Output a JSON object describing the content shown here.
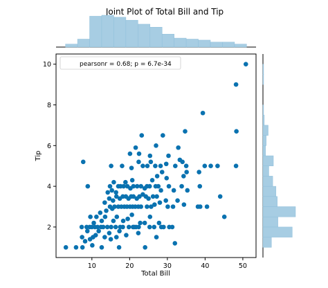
{
  "figure": {
    "title": "Joint Plot of Total Bill and Tip"
  },
  "colors": {
    "points": "#0a72b0",
    "hist_fill": "#a7cde3",
    "hist_edge": "#8fbfdb",
    "axis": "#000000"
  },
  "chart_data": {
    "type": "scatter",
    "title": "Joint Plot of Total Bill and Tip",
    "xlabel": "Total Bill",
    "ylabel": "Tip",
    "xlim": [
      0.5,
      53.5
    ],
    "ylim": [
      0.5,
      10.5
    ],
    "xticks": [
      10,
      20,
      30,
      40,
      50
    ],
    "yticks": [
      2,
      4,
      6,
      8,
      10
    ],
    "grid": false,
    "annotation": "pearsonr = 0.68; p = 6.7e-34",
    "annotation_placement": "top-left",
    "points": [
      [
        3.1,
        1.0
      ],
      [
        5.8,
        1.0
      ],
      [
        7.5,
        1.0
      ],
      [
        10.1,
        1.1
      ],
      [
        12.6,
        1.0
      ],
      [
        17.2,
        1.0
      ],
      [
        32.0,
        1.2
      ],
      [
        7.4,
        1.5
      ],
      [
        8.2,
        1.3
      ],
      [
        9.5,
        1.4
      ],
      [
        10.3,
        1.5
      ],
      [
        11.0,
        1.6
      ],
      [
        13.4,
        1.5
      ],
      [
        15.0,
        1.4
      ],
      [
        16.5,
        1.5
      ],
      [
        19.1,
        1.6
      ],
      [
        22.3,
        1.7
      ],
      [
        27.1,
        1.5
      ],
      [
        24.1,
        1.0
      ],
      [
        7.3,
        2.0
      ],
      [
        8.6,
        2.0
      ],
      [
        9.4,
        2.0
      ],
      [
        10.0,
        2.0
      ],
      [
        10.8,
        2.0
      ],
      [
        11.5,
        2.0
      ],
      [
        12.4,
        2.0
      ],
      [
        13.0,
        2.0
      ],
      [
        14.1,
        2.0
      ],
      [
        15.1,
        2.0
      ],
      [
        16.3,
        2.0
      ],
      [
        17.5,
        2.0
      ],
      [
        18.2,
        2.0
      ],
      [
        19.8,
        2.0
      ],
      [
        20.9,
        2.0
      ],
      [
        21.7,
        2.0
      ],
      [
        22.4,
        2.0
      ],
      [
        25.3,
        2.0
      ],
      [
        29.0,
        2.0
      ],
      [
        30.5,
        2.0
      ],
      [
        31.3,
        2.0
      ],
      [
        8.8,
        1.8
      ],
      [
        10.5,
        2.2
      ],
      [
        11.8,
        1.8
      ],
      [
        12.6,
        2.3
      ],
      [
        13.5,
        2.5
      ],
      [
        14.6,
        1.7
      ],
      [
        15.7,
        2.3
      ],
      [
        16.6,
        2.5
      ],
      [
        17.3,
        1.8
      ],
      [
        18.3,
        2.3
      ],
      [
        19.5,
        2.4
      ],
      [
        20.6,
        2.6
      ],
      [
        21.2,
        2.0
      ],
      [
        22.8,
        2.2
      ],
      [
        24.0,
        2.2
      ],
      [
        25.4,
        2.5
      ],
      [
        26.5,
        2.0
      ],
      [
        27.8,
        2.2
      ],
      [
        28.4,
        2.0
      ],
      [
        9.6,
        2.5
      ],
      [
        11.2,
        2.5
      ],
      [
        12.2,
        2.7
      ],
      [
        13.8,
        2.8
      ],
      [
        14.8,
        3.0
      ],
      [
        15.4,
        2.9
      ],
      [
        16.0,
        3.0
      ],
      [
        17.0,
        3.0
      ],
      [
        17.8,
        3.0
      ],
      [
        18.6,
        3.0
      ],
      [
        19.3,
        3.0
      ],
      [
        20.1,
        3.0
      ],
      [
        20.8,
        3.0
      ],
      [
        21.5,
        3.0
      ],
      [
        22.3,
        3.0
      ],
      [
        23.0,
        3.0
      ],
      [
        24.6,
        3.0
      ],
      [
        25.7,
        3.0
      ],
      [
        26.6,
        3.1
      ],
      [
        28.0,
        3.2
      ],
      [
        30.1,
        3.0
      ],
      [
        31.5,
        3.0
      ],
      [
        34.4,
        3.1
      ],
      [
        38.1,
        3.0
      ],
      [
        38.7,
        3.0
      ],
      [
        40.5,
        3.0
      ],
      [
        13.4,
        3.2
      ],
      [
        14.6,
        3.4
      ],
      [
        15.6,
        3.3
      ],
      [
        16.5,
        3.5
      ],
      [
        17.4,
        3.4
      ],
      [
        18.2,
        3.5
      ],
      [
        19.0,
        3.5
      ],
      [
        19.7,
        3.4
      ],
      [
        20.4,
        3.5
      ],
      [
        21.0,
        3.5
      ],
      [
        21.9,
        3.4
      ],
      [
        22.6,
        3.5
      ],
      [
        23.5,
        3.6
      ],
      [
        24.3,
        3.5
      ],
      [
        25.0,
        3.4
      ],
      [
        26.2,
        3.5
      ],
      [
        27.2,
        3.5
      ],
      [
        29.6,
        3.3
      ],
      [
        32.7,
        3.3
      ],
      [
        35.3,
        3.8
      ],
      [
        44.0,
        3.5
      ],
      [
        14.2,
        3.7
      ],
      [
        15.3,
        3.8
      ],
      [
        16.4,
        3.7
      ],
      [
        17.6,
        4.0
      ],
      [
        18.4,
        4.0
      ],
      [
        19.4,
        4.0
      ],
      [
        20.2,
        3.9
      ],
      [
        21.0,
        4.0
      ],
      [
        22.0,
        4.0
      ],
      [
        23.0,
        4.0
      ],
      [
        24.0,
        3.9
      ],
      [
        25.3,
        4.0
      ],
      [
        26.9,
        4.0
      ],
      [
        27.6,
        4.0
      ],
      [
        28.3,
        3.8
      ],
      [
        30.4,
        4.0
      ],
      [
        31.7,
        3.8
      ],
      [
        33.8,
        4.0
      ],
      [
        38.6,
        4.0
      ],
      [
        45.1,
        2.5
      ],
      [
        8.9,
        4.0
      ],
      [
        14.8,
        4.0
      ],
      [
        15.8,
        4.2
      ],
      [
        17.0,
        4.0
      ],
      [
        18.9,
        4.2
      ],
      [
        20.7,
        4.3
      ],
      [
        24.6,
        4.0
      ],
      [
        26.0,
        4.3
      ],
      [
        27.3,
        4.5
      ],
      [
        28.6,
        4.7
      ],
      [
        29.8,
        4.4
      ],
      [
        34.3,
        4.5
      ],
      [
        35.1,
        4.7
      ],
      [
        7.7,
        5.2
      ],
      [
        15.1,
        5.0
      ],
      [
        18.0,
        5.0
      ],
      [
        20.5,
        4.9
      ],
      [
        22.4,
        5.2
      ],
      [
        23.5,
        5.0
      ],
      [
        24.7,
        5.0
      ],
      [
        25.6,
        5.2
      ],
      [
        26.8,
        5.0
      ],
      [
        28.2,
        5.0
      ],
      [
        29.7,
        5.1
      ],
      [
        32.1,
        5.0
      ],
      [
        34.0,
        5.2
      ],
      [
        35.0,
        5.0
      ],
      [
        38.4,
        4.7
      ],
      [
        39.9,
        5.0
      ],
      [
        41.5,
        5.0
      ],
      [
        43.3,
        5.0
      ],
      [
        48.2,
        5.0
      ],
      [
        21.6,
        5.9
      ],
      [
        23.2,
        6.5
      ],
      [
        25.4,
        5.5
      ],
      [
        27.0,
        6.0
      ],
      [
        28.8,
        6.5
      ],
      [
        30.3,
        5.5
      ],
      [
        32.9,
        5.9
      ],
      [
        34.7,
        6.7
      ],
      [
        22.5,
        5.6
      ],
      [
        20.1,
        5.6
      ],
      [
        33.3,
        5.3
      ],
      [
        39.4,
        7.6
      ],
      [
        48.2,
        9.0
      ],
      [
        48.3,
        6.7
      ],
      [
        50.8,
        10.0
      ]
    ],
    "x_marginal": {
      "edges": [
        3,
        6.2,
        9.4,
        12.6,
        15.8,
        19,
        22.2,
        25.4,
        28.6,
        31.8,
        35,
        38.2,
        41.4,
        44.6,
        47.8,
        51
      ],
      "counts": [
        3,
        8,
        31,
        32,
        30,
        27,
        23,
        20,
        13,
        9,
        8,
        7,
        5,
        5,
        3
      ]
    },
    "y_marginal": {
      "edges": [
        1,
        1.5,
        2,
        2.5,
        3,
        3.5,
        4,
        4.5,
        5,
        5.5,
        6,
        6.5,
        7,
        7.5,
        8,
        8.5,
        9,
        9.5,
        10
      ],
      "counts": [
        13,
        45,
        23,
        50,
        22,
        20,
        15,
        9,
        16,
        4,
        5,
        8,
        2,
        1,
        0,
        0,
        1,
        1
      ]
    }
  }
}
